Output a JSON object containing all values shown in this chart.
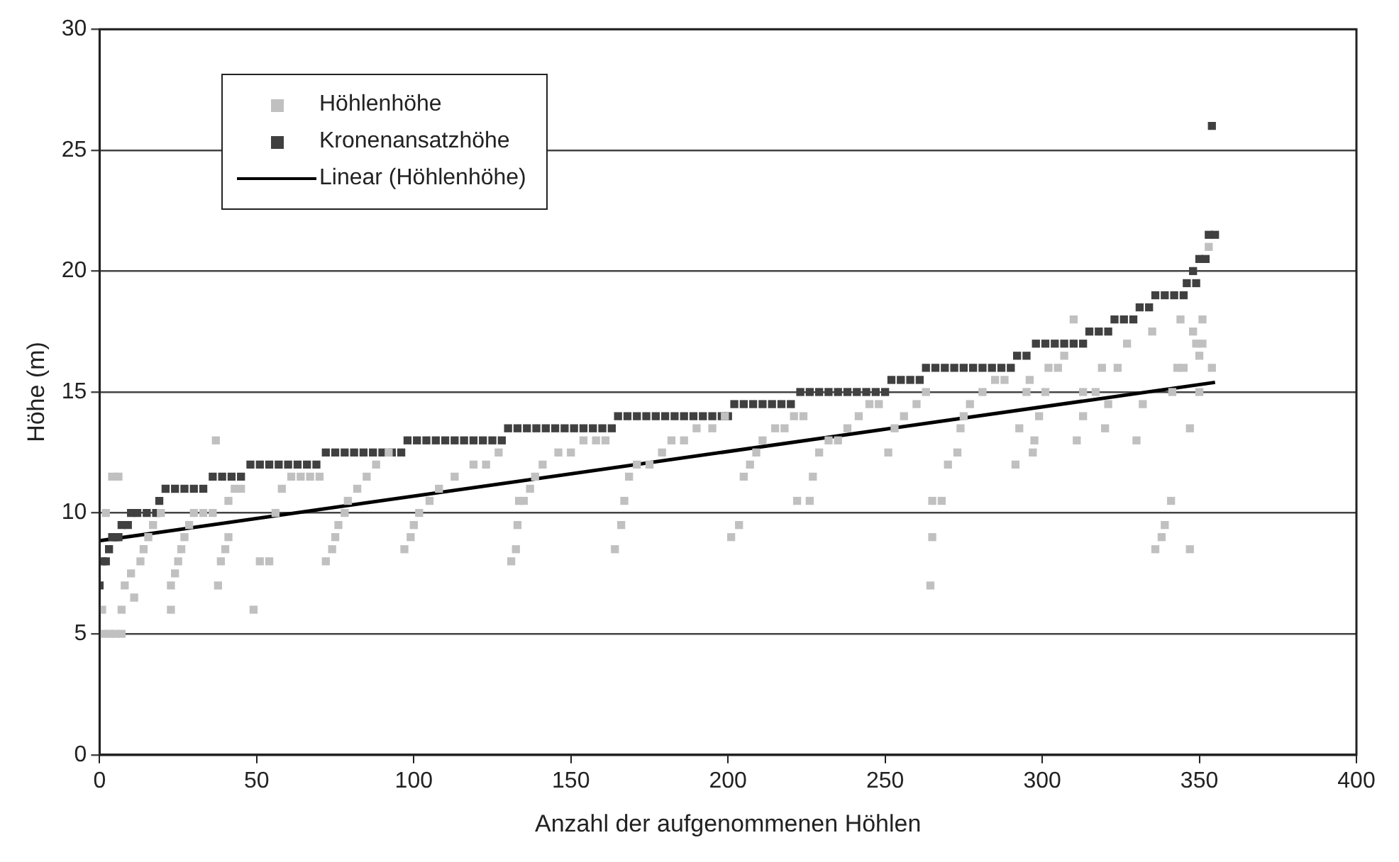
{
  "chart_data": {
    "type": "scatter",
    "xlabel": "Anzahl der aufgenommenen Höhlen",
    "ylabel": "Höhe (m)",
    "xlim": [
      0,
      400
    ],
    "xticks": [
      0,
      50,
      100,
      150,
      200,
      250,
      300,
      350,
      400
    ],
    "ylim": [
      0,
      30
    ],
    "yticks": [
      0,
      5,
      10,
      15,
      20,
      25,
      30
    ],
    "grid": "y",
    "legend": "top left",
    "marker": "square",
    "series": [
      {
        "name": "Höhlenhöhe",
        "color": "#c0c0c0",
        "x": [
          0.8,
          1,
          3,
          5,
          7,
          2,
          4,
          6,
          7,
          8,
          10,
          11,
          13,
          14,
          15.5,
          17,
          19.5,
          22.7,
          22.7,
          24,
          25,
          26,
          27,
          28.5,
          30,
          33,
          36,
          37,
          37.7,
          38.6,
          40,
          41,
          41,
          43,
          45,
          49,
          51,
          54,
          56,
          58,
          61,
          64,
          67,
          70,
          72,
          74,
          75,
          76,
          78,
          79,
          82,
          85,
          88,
          92,
          97,
          99,
          100,
          101.7,
          105,
          108,
          113,
          119,
          123,
          127,
          131,
          132.5,
          133,
          133.5,
          135,
          137,
          138.6,
          141,
          146,
          150,
          154,
          158,
          161,
          164,
          166,
          167,
          168.5,
          171,
          175,
          179,
          182,
          186,
          190,
          195,
          199,
          201,
          203.5,
          205,
          207,
          209,
          211,
          215,
          218,
          221,
          224,
          222,
          226,
          227,
          229,
          232,
          235,
          238,
          241.6,
          245,
          248,
          251,
          253,
          256,
          260,
          263,
          264.4,
          265,
          265,
          268,
          270,
          273,
          274,
          275,
          277,
          281,
          285,
          288,
          291.5,
          292.7,
          295,
          296,
          297,
          297.5,
          299,
          301,
          302,
          305,
          307,
          310,
          311,
          313,
          313,
          317,
          319,
          320,
          321,
          324,
          327,
          330,
          332,
          335,
          336,
          338,
          339,
          341,
          341.4,
          343,
          345,
          344,
          347,
          347,
          348,
          349,
          350,
          350,
          351,
          351,
          354,
          353
        ],
        "values": [
          6,
          5,
          5,
          5,
          5,
          10,
          11.5,
          11.5,
          6,
          7,
          7.5,
          6.5,
          8,
          8.5,
          9,
          9.5,
          10,
          6,
          7,
          7.5,
          8,
          8.5,
          9,
          9.5,
          10,
          10,
          10,
          13,
          7,
          8,
          8.5,
          9,
          10.5,
          11,
          11,
          6,
          8,
          8,
          10,
          11,
          11.5,
          11.5,
          11.5,
          11.5,
          8,
          8.5,
          9,
          9.5,
          10,
          10.5,
          11,
          11.5,
          12,
          12.5,
          8.5,
          9,
          9.5,
          10,
          10.5,
          11,
          11.5,
          12,
          12,
          12.5,
          8,
          8.5,
          9.5,
          10.5,
          10.5,
          11,
          11.5,
          12,
          12.5,
          12.5,
          13,
          13,
          13,
          8.5,
          9.5,
          10.5,
          11.5,
          12,
          12,
          12.5,
          13,
          13,
          13.5,
          13.5,
          14,
          9,
          9.5,
          11.5,
          12,
          12.5,
          13,
          13.5,
          13.5,
          14,
          14,
          10.5,
          10.5,
          11.5,
          12.5,
          13,
          13,
          13.5,
          14,
          14.5,
          14.5,
          12.5,
          13.5,
          14,
          14.5,
          15,
          7,
          9,
          10.5,
          10.5,
          12,
          12.5,
          13.5,
          14,
          14.5,
          15,
          15.5,
          15.5,
          12,
          13.5,
          15,
          15.5,
          12.5,
          13,
          14,
          15,
          16,
          16,
          16.5,
          18,
          13,
          14,
          15,
          15,
          16,
          13.5,
          14.5,
          16,
          17,
          13,
          14.5,
          17.5,
          8.5,
          9,
          9.5,
          10.5,
          15,
          16,
          16,
          18,
          13.5,
          8.5,
          17.5,
          17,
          16.5,
          15,
          17,
          18,
          16,
          21
        ]
      },
      {
        "name": "Kronenansatzhöhe",
        "color": "#404040",
        "x": [
          0,
          1,
          2,
          3,
          4,
          5,
          6,
          7,
          9,
          10,
          12,
          15,
          18,
          19,
          21,
          24,
          27,
          30,
          33,
          36,
          39,
          42,
          45,
          48,
          51,
          54,
          57,
          60,
          63,
          66,
          69,
          72,
          75,
          78,
          81,
          84,
          87,
          90,
          93,
          96,
          98,
          101,
          104,
          107,
          110,
          113,
          116,
          119,
          122,
          125,
          128,
          130,
          133,
          136,
          139,
          142,
          145,
          148,
          151,
          154,
          157,
          160,
          163,
          165,
          168,
          171,
          174,
          177,
          180,
          183,
          186,
          189,
          192,
          195,
          198,
          200,
          202,
          205,
          208,
          211,
          214,
          217,
          220,
          223,
          226,
          229,
          232,
          235,
          238,
          241,
          244,
          247,
          250,
          252,
          255,
          258,
          261,
          263,
          266,
          269,
          272,
          275,
          278,
          281,
          284,
          287,
          290,
          292,
          295,
          298,
          301,
          304,
          307,
          310,
          313,
          315,
          318,
          321,
          323,
          326,
          329,
          331,
          334,
          336,
          339,
          342,
          345,
          346,
          349,
          348,
          350,
          352,
          353,
          355,
          354
        ],
        "values": [
          7,
          8,
          8,
          8.5,
          9,
          9,
          9,
          9.5,
          9.5,
          10,
          10,
          10,
          10,
          10.5,
          11,
          11,
          11,
          11,
          11,
          11.5,
          11.5,
          11.5,
          11.5,
          12,
          12,
          12,
          12,
          12,
          12,
          12,
          12,
          12.5,
          12.5,
          12.5,
          12.5,
          12.5,
          12.5,
          12.5,
          12.5,
          12.5,
          13,
          13,
          13,
          13,
          13,
          13,
          13,
          13,
          13,
          13,
          13,
          13.5,
          13.5,
          13.5,
          13.5,
          13.5,
          13.5,
          13.5,
          13.5,
          13.5,
          13.5,
          13.5,
          13.5,
          14,
          14,
          14,
          14,
          14,
          14,
          14,
          14,
          14,
          14,
          14,
          14,
          14,
          14.5,
          14.5,
          14.5,
          14.5,
          14.5,
          14.5,
          14.5,
          15,
          15,
          15,
          15,
          15,
          15,
          15,
          15,
          15,
          15,
          15.5,
          15.5,
          15.5,
          15.5,
          16,
          16,
          16,
          16,
          16,
          16,
          16,
          16,
          16,
          16,
          16.5,
          16.5,
          17,
          17,
          17,
          17,
          17,
          17,
          17.5,
          17.5,
          17.5,
          18,
          18,
          18,
          18.5,
          18.5,
          19,
          19,
          19,
          19,
          19.5,
          19.5,
          20,
          20.5,
          20.5,
          21.5,
          21.5,
          26
        ]
      },
      {
        "name": "Linear (Höhlenhöhe)",
        "type": "line",
        "marker": "none",
        "color": "#000000",
        "x": [
          0,
          355
        ],
        "values": [
          8.85,
          15.4
        ]
      }
    ]
  }
}
